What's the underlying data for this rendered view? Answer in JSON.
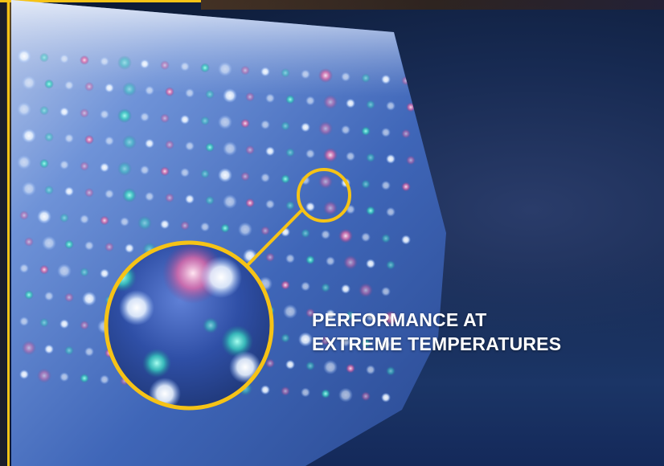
{
  "headline": {
    "line1": "PERFORMANCE AT",
    "line2": "EXTREME TEMPERATURES"
  },
  "colors": {
    "accent": "#f6c316",
    "background": "#0f2140",
    "ice": "#6f93d8"
  },
  "icons": {
    "callout_small": "magnifier-target-circle",
    "callout_large": "magnified-view-circle"
  }
}
